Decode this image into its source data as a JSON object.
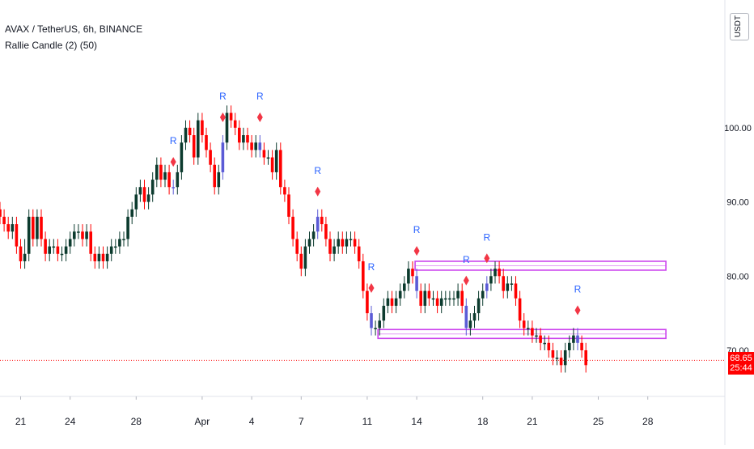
{
  "chart": {
    "symbol_line": "AVAX / TetherUS, 6h, BINANCE",
    "indicator_line": "Rallie Candle (2) (50)",
    "currency": "USDT",
    "last_price_label": "68.65",
    "countdown_label": "25:44"
  },
  "colors": {
    "up": "#0c3b2e",
    "down": "#ff0000",
    "rallie": "#5b5bd6",
    "signal": "#f23645",
    "signal_text": "#2962ff",
    "zone": "#cc44ee",
    "last_line": "#ff0000"
  },
  "chart_data": {
    "type": "candlestick",
    "ylim": [
      64,
      117
    ],
    "y_ticks": [
      {
        "value": 100,
        "label": "100.00"
      },
      {
        "value": 90,
        "label": "90.00"
      },
      {
        "value": 80,
        "label": "80.00"
      },
      {
        "value": 70,
        "label": "70.00"
      }
    ],
    "x_ticks": [
      {
        "index": 5,
        "label": "21"
      },
      {
        "index": 17,
        "label": "24"
      },
      {
        "index": 33,
        "label": "28"
      },
      {
        "index": 49,
        "label": "Apr"
      },
      {
        "index": 61,
        "label": "4"
      },
      {
        "index": 73,
        "label": "7"
      },
      {
        "index": 89,
        "label": "11"
      },
      {
        "index": 101,
        "label": "14"
      },
      {
        "index": 117,
        "label": "18"
      },
      {
        "index": 129,
        "label": "21"
      },
      {
        "index": 145,
        "label": "25"
      },
      {
        "index": 157,
        "label": "28"
      }
    ],
    "closes": [
      88,
      87,
      86,
      87,
      84,
      82,
      83,
      88,
      85,
      88,
      85,
      83,
      84,
      84,
      83,
      83,
      84,
      85,
      86,
      86,
      85,
      86,
      83,
      82,
      83,
      82,
      83,
      84,
      84,
      85,
      85,
      88,
      89,
      91,
      92,
      90,
      91,
      93,
      95,
      93,
      94,
      92,
      92,
      94,
      98,
      100,
      99,
      96,
      101,
      99,
      97,
      95,
      92,
      94,
      98,
      102,
      101,
      100,
      98,
      99,
      98,
      97,
      98,
      97,
      96,
      96,
      94,
      97,
      92,
      91,
      88,
      85,
      83,
      81,
      84,
      85,
      86,
      88,
      87,
      85,
      83,
      84,
      85,
      84,
      85,
      85,
      84,
      82,
      78,
      75,
      73,
      73,
      74,
      76,
      77,
      76,
      77,
      78,
      79,
      81,
      80,
      78,
      76,
      78,
      77,
      77,
      76,
      77,
      77,
      77,
      77,
      78,
      76,
      73,
      74,
      75,
      77,
      78,
      79,
      80,
      81,
      80,
      78,
      79,
      79,
      77,
      74,
      73,
      73,
      72,
      72,
      71,
      71,
      70,
      69,
      69,
      68,
      70,
      71,
      72,
      71,
      70,
      68
    ],
    "opens": [
      89,
      88,
      87,
      86,
      87,
      84,
      82,
      83,
      88,
      85,
      88,
      85,
      83,
      84,
      84,
      83,
      83,
      84,
      85,
      86,
      86,
      85,
      86,
      83,
      82,
      83,
      82,
      83,
      84,
      84,
      85,
      85,
      88,
      89,
      91,
      92,
      90,
      91,
      93,
      95,
      93,
      94,
      92,
      92,
      94,
      98,
      100,
      99,
      96,
      101,
      99,
      97,
      95,
      92,
      94,
      98,
      102,
      101,
      100,
      98,
      99,
      98,
      97,
      98,
      97,
      96,
      96,
      94,
      97,
      92,
      91,
      88,
      85,
      83,
      81,
      84,
      85,
      86,
      88,
      87,
      85,
      83,
      84,
      85,
      84,
      85,
      85,
      84,
      82,
      78,
      75,
      73,
      73,
      74,
      76,
      77,
      76,
      77,
      78,
      79,
      81,
      80,
      78,
      76,
      78,
      77,
      77,
      76,
      77,
      77,
      77,
      77,
      78,
      76,
      73,
      74,
      75,
      77,
      78,
      79,
      80,
      81,
      80,
      78,
      79,
      79,
      77,
      74,
      73,
      73,
      72,
      72,
      71,
      71,
      70,
      69,
      69,
      68,
      70,
      71,
      72,
      71,
      70
    ],
    "highs": [
      90,
      89,
      88,
      88,
      88,
      85,
      85,
      89,
      89,
      89,
      89,
      86,
      85,
      85,
      85,
      84,
      85,
      86,
      87,
      87,
      87,
      87,
      87,
      84,
      84,
      84,
      84,
      85,
      85,
      86,
      86,
      89,
      90,
      92,
      93,
      93,
      92,
      94,
      96,
      96,
      95,
      95,
      93,
      95,
      99,
      101,
      101,
      100,
      102,
      102,
      100,
      98,
      96,
      95,
      99,
      103,
      103,
      102,
      101,
      100,
      100,
      99,
      99,
      99,
      98,
      97,
      97,
      98,
      98,
      93,
      92,
      89,
      86,
      84,
      85,
      86,
      87,
      89,
      89,
      88,
      86,
      85,
      86,
      86,
      86,
      86,
      86,
      85,
      83,
      79,
      76,
      74,
      75,
      77,
      78,
      78,
      78,
      79,
      80,
      82,
      82,
      81,
      79,
      79,
      79,
      78,
      78,
      78,
      78,
      78,
      78,
      79,
      79,
      77,
      75,
      76,
      78,
      79,
      80,
      81,
      82,
      82,
      81,
      80,
      80,
      80,
      78,
      75,
      74,
      74,
      73,
      73,
      72,
      72,
      71,
      70,
      70,
      71,
      72,
      73,
      73,
      72,
      71
    ],
    "lows": [
      87,
      86,
      85,
      85,
      83,
      81,
      81,
      82,
      84,
      84,
      84,
      82,
      82,
      83,
      82,
      82,
      82,
      83,
      84,
      85,
      84,
      84,
      82,
      81,
      81,
      81,
      81,
      82,
      83,
      83,
      84,
      84,
      87,
      88,
      90,
      89,
      89,
      90,
      92,
      92,
      92,
      91,
      91,
      91,
      93,
      97,
      98,
      95,
      95,
      98,
      96,
      94,
      91,
      91,
      93,
      97,
      100,
      99,
      97,
      97,
      97,
      96,
      96,
      96,
      95,
      95,
      93,
      93,
      91,
      90,
      87,
      84,
      82,
      80,
      80,
      83,
      84,
      85,
      86,
      84,
      82,
      82,
      83,
      83,
      83,
      84,
      83,
      81,
      77,
      74,
      72,
      72,
      72,
      73,
      75,
      75,
      75,
      76,
      77,
      78,
      79,
      77,
      75,
      75,
      76,
      76,
      75,
      75,
      76,
      76,
      76,
      76,
      75,
      72,
      72,
      73,
      74,
      76,
      77,
      78,
      79,
      79,
      77,
      77,
      78,
      76,
      73,
      72,
      72,
      71,
      71,
      70,
      70,
      69,
      68,
      68,
      67,
      67,
      69,
      70,
      70,
      69,
      67
    ],
    "rallie_candles": [
      42,
      54,
      63,
      77,
      90,
      101,
      113,
      118,
      140
    ],
    "zones": [
      {
        "from_index": 101,
        "to_index": 161,
        "high": 82,
        "low": 80.8
      },
      {
        "from_index": 92,
        "to_index": 161,
        "high": 72.8,
        "low": 71.6
      }
    ],
    "last_price": 68.65
  }
}
